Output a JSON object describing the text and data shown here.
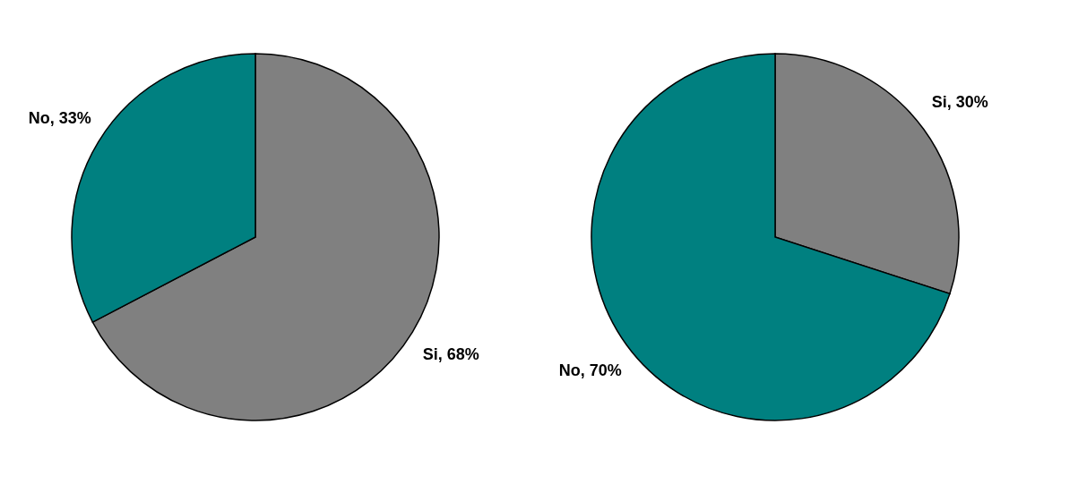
{
  "chart_data": [
    {
      "type": "pie",
      "categories": [
        "Si",
        "No"
      ],
      "values": [
        68,
        33
      ],
      "colors": [
        "#808080",
        "#008080"
      ],
      "value_labels": [
        "68%",
        "33%"
      ],
      "legend": false
    },
    {
      "type": "pie",
      "categories": [
        "Si",
        "No"
      ],
      "values": [
        30,
        70
      ],
      "colors": [
        "#808080",
        "#008080"
      ],
      "value_labels": [
        "30%",
        "70%"
      ],
      "legend": false
    }
  ]
}
